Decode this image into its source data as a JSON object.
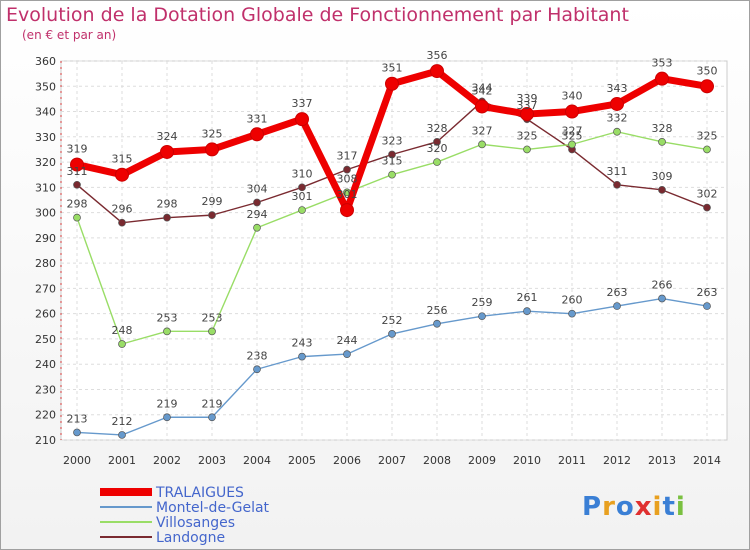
{
  "chart_data": {
    "type": "line",
    "title": "Evolution de la Dotation Globale de Fonctionnement par Habitant",
    "subtitle": "(en € et par an)",
    "xlabel": "",
    "ylabel": "",
    "ylim": [
      210,
      360
    ],
    "yticks": [
      210,
      220,
      230,
      240,
      250,
      260,
      270,
      280,
      290,
      300,
      310,
      320,
      330,
      340,
      350,
      360
    ],
    "categories": [
      "2000",
      "2001",
      "2002",
      "2003",
      "2004",
      "2005",
      "2006",
      "2007",
      "2008",
      "2009",
      "2010",
      "2011",
      "2012",
      "2013",
      "2014"
    ],
    "grid": true,
    "legend_position": "bottom-left",
    "series": [
      {
        "name": "Landogne",
        "color": "#7a2a30",
        "values": [
          311,
          296,
          298,
          299,
          304,
          310,
          317,
          323,
          328,
          344,
          337,
          325,
          311,
          309,
          302
        ]
      },
      {
        "name": "Villosanges",
        "color": "#99dd66",
        "values": [
          298,
          248,
          253,
          253,
          294,
          301,
          308,
          315,
          320,
          327,
          325,
          327,
          332,
          328,
          325
        ]
      },
      {
        "name": "Montel-de-Gelat",
        "color": "#6699cc",
        "values": [
          213,
          212,
          219,
          219,
          238,
          243,
          244,
          252,
          256,
          259,
          261,
          260,
          263,
          266,
          263
        ]
      },
      {
        "name": "TRALAIGUES",
        "color": "#ee0000",
        "values": [
          319,
          315,
          324,
          325,
          331,
          337,
          301,
          351,
          356,
          342,
          339,
          340,
          343,
          353,
          350
        ]
      }
    ],
    "legend_order": [
      "TRALAIGUES",
      "Montel-de-Gelat",
      "Villosanges",
      "Landogne"
    ]
  },
  "logo": {
    "text": "Proxiti"
  }
}
